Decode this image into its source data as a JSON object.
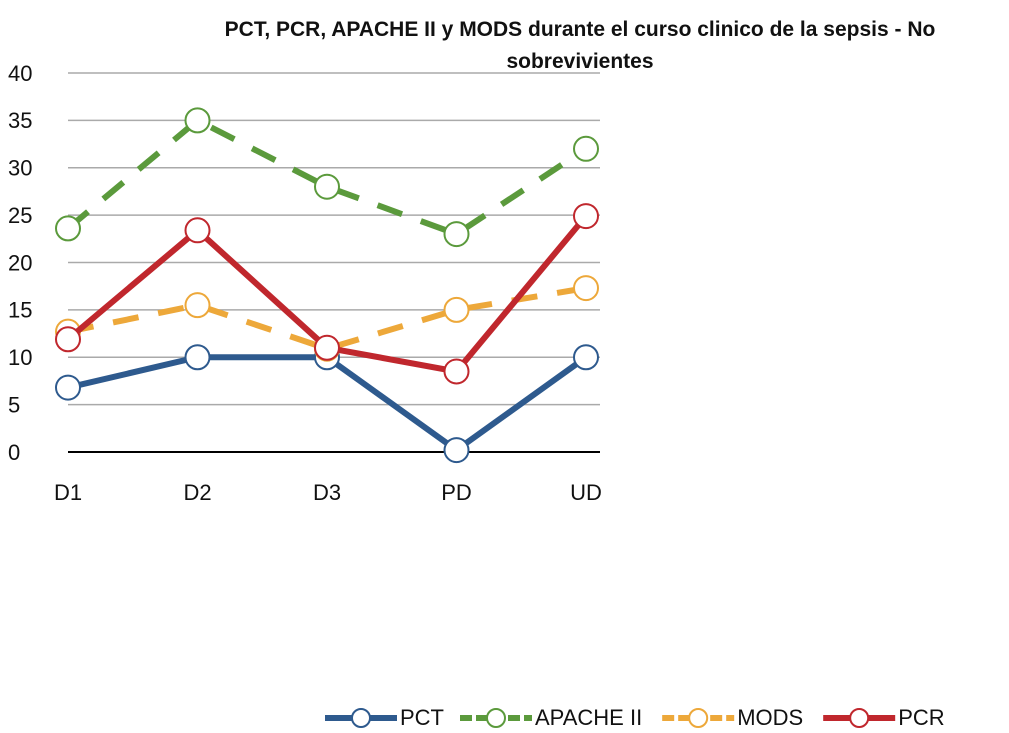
{
  "chart_data": {
    "type": "line",
    "title": "PCT, PCR, APACHE II y MODS durante el curso clinico de la sepsis - No sobrevivientes",
    "categories": [
      "D1",
      "D2",
      "D3",
      "PD",
      "UD"
    ],
    "series": [
      {
        "name": "PCT",
        "color": "#2e5a8e",
        "dashed": false,
        "values": [
          6.8,
          10,
          10,
          0.2,
          10
        ]
      },
      {
        "name": "APACHE II",
        "color": "#5b9a3c",
        "dashed": true,
        "values": [
          23.6,
          35,
          28,
          23,
          32
        ]
      },
      {
        "name": "MODS",
        "color": "#eda83a",
        "dashed": true,
        "values": [
          12.7,
          15.5,
          10.9,
          15,
          17.3
        ]
      },
      {
        "name": "PCR",
        "color": "#c0272d",
        "dashed": false,
        "values": [
          11.9,
          23.4,
          11,
          8.5,
          24.9
        ]
      }
    ],
    "ylim": [
      0,
      40
    ],
    "yticks": [
      0,
      5,
      10,
      15,
      20,
      25,
      30,
      35,
      40
    ],
    "grid": true,
    "legend": "bottom"
  }
}
